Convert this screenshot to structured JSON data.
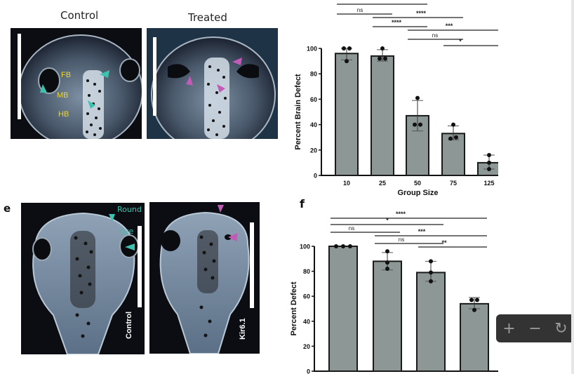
{
  "figure": {
    "panel_top_left": {
      "control_title": "Control",
      "treated_title": "Treated",
      "region_labels": [
        "FB",
        "MB",
        "HB"
      ],
      "arrow_colors": {
        "control": "#3cc3b0",
        "treated": "#c25bb8"
      },
      "label_color": "#e8d53a"
    },
    "panel_e": {
      "letter": "e",
      "control_label": "Control",
      "treated_label": "Kir6.1",
      "annotation_round": "Round",
      "annotation_eye": "Eye"
    },
    "panel_f": {
      "letter": "f"
    }
  },
  "chart_data": [
    {
      "type": "bar",
      "title": "",
      "xlabel": "Group Size",
      "ylabel": "Percent Brain Defect",
      "categories": [
        "10",
        "25",
        "50",
        "75",
        "125"
      ],
      "values": [
        96,
        94,
        47,
        33,
        10
      ],
      "error_low": [
        91,
        90,
        35,
        28,
        5
      ],
      "error_high": [
        100,
        99,
        59,
        39,
        16
      ],
      "points": [
        [
          100,
          100,
          90
        ],
        [
          100,
          92,
          92
        ],
        [
          61,
          40,
          40
        ],
        [
          40,
          29,
          30
        ],
        [
          16,
          10,
          5
        ]
      ],
      "ylim": [
        0,
        100
      ],
      "yticks": [
        0,
        20,
        40,
        60,
        80,
        100
      ],
      "bar_color": "#8d9896",
      "significance": [
        {
          "from": 0,
          "to": 2,
          "label": "****"
        },
        {
          "from": 0,
          "to": 1,
          "label": "ns"
        },
        {
          "from": 1,
          "to": 3,
          "label": "****"
        },
        {
          "from": 1,
          "to": 2,
          "label": "****"
        },
        {
          "from": 2,
          "to": 4,
          "label": "***"
        },
        {
          "from": 2,
          "to": 3,
          "label": "ns"
        },
        {
          "from": 3,
          "to": 4,
          "label": "*"
        }
      ]
    },
    {
      "type": "bar",
      "title": "",
      "xlabel": "",
      "ylabel": "Percent Defect",
      "categories": [
        "",
        "",
        "",
        ""
      ],
      "values": [
        100,
        88,
        79,
        54
      ],
      "error_low": [
        100,
        81,
        72,
        50
      ],
      "error_high": [
        100,
        95,
        88,
        59
      ],
      "points": [
        [
          100,
          100,
          100
        ],
        [
          96,
          87,
          82
        ],
        [
          88,
          79,
          72
        ],
        [
          57,
          57,
          49
        ]
      ],
      "ylim": [
        0,
        100
      ],
      "yticks": [
        0,
        20,
        40,
        60,
        80,
        100
      ],
      "bar_color": "#8d9896",
      "significance": [
        {
          "from": 0,
          "to": 3,
          "label": "****"
        },
        {
          "from": 0,
          "to": 2,
          "label": "*"
        },
        {
          "from": 0,
          "to": 1,
          "label": "ns"
        },
        {
          "from": 1,
          "to": 3,
          "label": "***"
        },
        {
          "from": 1,
          "to": 2,
          "label": "ns"
        },
        {
          "from": 2,
          "to": 3,
          "label": "**"
        }
      ]
    }
  ],
  "viewer_toolbar": {
    "zoom_in": "+",
    "zoom_out": "−",
    "rotate": "↻"
  }
}
